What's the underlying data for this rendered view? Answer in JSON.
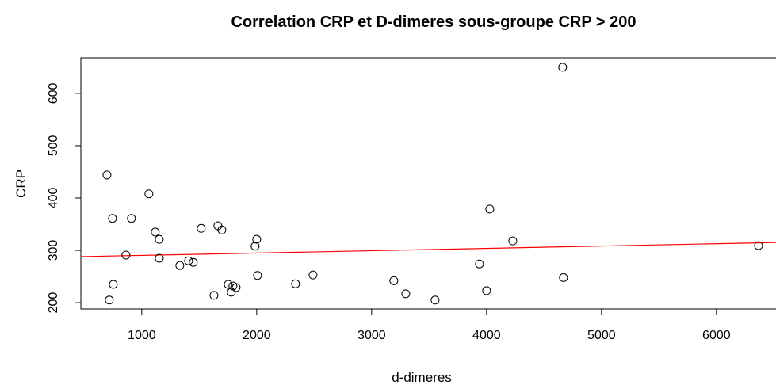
{
  "chart_data": {
    "type": "scatter",
    "title": "Correlation CRP et D-dimeres sous-groupe CRP > 200",
    "x_label": "d-dimeres",
    "y_label": "CRP",
    "x": [
      697,
      745,
      1062,
      910,
      1117,
      1152,
      862,
      1152,
      752,
      717,
      1331,
      1407,
      1448,
      1517,
      1662,
      1697,
      1628,
      1752,
      1779,
      1793,
      1821,
      2000,
      1986,
      2007,
      2338,
      2490,
      3193,
      3297,
      3552,
      3938,
      4000,
      4028,
      4228,
      4662,
      4669,
      6366
    ],
    "values": [
      444,
      361,
      408,
      361,
      335,
      321,
      291,
      285,
      235,
      205,
      271,
      280,
      277,
      342,
      347,
      339,
      214,
      235,
      220,
      232,
      229,
      321,
      308,
      252,
      236,
      253,
      242,
      217,
      205,
      274,
      223,
      379,
      318,
      650,
      248,
      309
    ],
    "color": "#000000",
    "regression": {
      "intercept": 285.9,
      "slope": 0.00446,
      "color": "#ff0000"
    },
    "xlim": [
      470,
      6590
    ],
    "ylim": [
      188,
      668
    ],
    "xticks": [
      1000,
      2000,
      3000,
      4000,
      5000,
      6000
    ],
    "yticks": [
      200,
      300,
      400,
      500,
      600
    ]
  }
}
